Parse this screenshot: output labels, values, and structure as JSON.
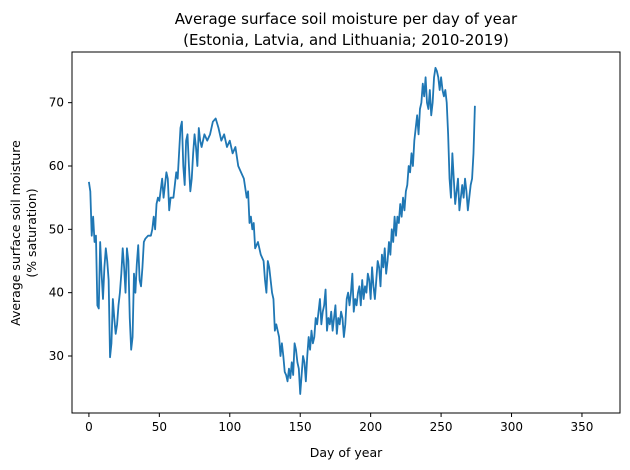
{
  "chart_data": {
    "type": "line",
    "title": "Average surface soil moisture per day of year",
    "subtitle": "(Estonia, Latvia, and Lithuania; 2010-2019)",
    "xlabel": "Day of year",
    "ylabel": "Average surface soil moisture",
    "ylabel2": "(% saturation)",
    "xlim": [
      -12,
      377
    ],
    "ylim": [
      21,
      78
    ],
    "xticks": [
      0,
      50,
      100,
      150,
      200,
      250,
      300,
      350
    ],
    "yticks": [
      30,
      40,
      50,
      60,
      70
    ],
    "grid": false,
    "series": [
      {
        "color": "#1f77b4",
        "points": [
          [
            0,
            57.5
          ],
          [
            1,
            56
          ],
          [
            2,
            49
          ],
          [
            3,
            52
          ],
          [
            4,
            48
          ],
          [
            5,
            49
          ],
          [
            6,
            38
          ],
          [
            7,
            37.5
          ],
          [
            8,
            48
          ],
          [
            9,
            43
          ],
          [
            10,
            39
          ],
          [
            11,
            44
          ],
          [
            12,
            47
          ],
          [
            13,
            45
          ],
          [
            14,
            42
          ],
          [
            15,
            29.8
          ],
          [
            16,
            32
          ],
          [
            17,
            39
          ],
          [
            18,
            36
          ],
          [
            19,
            33.5
          ],
          [
            20,
            35
          ],
          [
            21,
            38
          ],
          [
            22,
            40
          ],
          [
            23,
            43
          ],
          [
            24,
            47
          ],
          [
            25,
            44
          ],
          [
            26,
            40
          ],
          [
            27,
            47
          ],
          [
            28,
            45
          ],
          [
            29,
            36
          ],
          [
            30,
            31
          ],
          [
            31,
            33
          ],
          [
            32,
            43
          ],
          [
            33,
            40
          ],
          [
            34,
            44.5
          ],
          [
            35,
            47.5
          ],
          [
            36,
            42
          ],
          [
            37,
            41
          ],
          [
            38,
            44
          ],
          [
            39,
            48
          ],
          [
            40,
            48.5
          ],
          [
            42,
            49
          ],
          [
            44,
            49
          ],
          [
            45,
            50
          ],
          [
            46,
            52
          ],
          [
            47,
            50
          ],
          [
            48,
            54
          ],
          [
            49,
            55
          ],
          [
            50,
            54.5
          ],
          [
            52,
            58
          ],
          [
            53,
            55
          ],
          [
            54,
            57
          ],
          [
            55,
            59
          ],
          [
            56,
            58
          ],
          [
            57,
            53
          ],
          [
            58,
            55
          ],
          [
            60,
            55
          ],
          [
            61,
            57
          ],
          [
            62,
            59
          ],
          [
            63,
            58
          ],
          [
            64,
            62
          ],
          [
            65,
            66
          ],
          [
            66,
            67
          ],
          [
            67,
            60
          ],
          [
            68,
            57
          ],
          [
            69,
            64
          ],
          [
            70,
            65
          ],
          [
            71,
            60
          ],
          [
            72,
            56
          ],
          [
            73,
            58
          ],
          [
            74,
            62
          ],
          [
            75,
            65
          ],
          [
            76,
            63
          ],
          [
            77,
            60
          ],
          [
            78,
            66
          ],
          [
            79,
            64
          ],
          [
            80,
            63
          ],
          [
            82,
            65
          ],
          [
            84,
            64
          ],
          [
            86,
            65
          ],
          [
            88,
            67
          ],
          [
            90,
            67.5
          ],
          [
            92,
            66
          ],
          [
            94,
            64
          ],
          [
            96,
            65
          ],
          [
            98,
            63
          ],
          [
            100,
            64
          ],
          [
            102,
            62
          ],
          [
            104,
            63
          ],
          [
            106,
            60
          ],
          [
            108,
            59
          ],
          [
            110,
            58
          ],
          [
            112,
            55
          ],
          [
            113,
            56
          ],
          [
            114,
            51
          ],
          [
            115,
            52
          ],
          [
            116,
            50
          ],
          [
            117,
            51
          ],
          [
            118,
            47
          ],
          [
            120,
            48
          ],
          [
            122,
            46
          ],
          [
            124,
            45
          ],
          [
            125,
            42
          ],
          [
            126,
            40
          ],
          [
            127,
            45
          ],
          [
            128,
            44
          ],
          [
            130,
            40
          ],
          [
            131,
            39
          ],
          [
            132,
            34
          ],
          [
            133,
            35
          ],
          [
            134,
            34
          ],
          [
            135,
            33
          ],
          [
            136,
            30
          ],
          [
            137,
            32
          ],
          [
            138,
            30
          ],
          [
            139,
            27.5
          ],
          [
            140,
            27
          ],
          [
            141,
            26
          ],
          [
            142,
            28
          ],
          [
            143,
            26.5
          ],
          [
            144,
            29
          ],
          [
            145,
            27
          ],
          [
            146,
            32
          ],
          [
            147,
            31
          ],
          [
            148,
            29
          ],
          [
            149,
            28
          ],
          [
            150,
            24
          ],
          [
            151,
            27
          ],
          [
            152,
            30
          ],
          [
            153,
            29
          ],
          [
            154,
            26
          ],
          [
            155,
            30
          ],
          [
            156,
            33
          ],
          [
            157,
            31
          ],
          [
            158,
            34
          ],
          [
            159,
            32
          ],
          [
            160,
            33
          ],
          [
            161,
            36
          ],
          [
            162,
            35
          ],
          [
            163,
            37
          ],
          [
            164,
            39
          ],
          [
            165,
            35
          ],
          [
            166,
            37
          ],
          [
            167,
            38
          ],
          [
            168,
            40.5
          ],
          [
            169,
            34
          ],
          [
            170,
            36
          ],
          [
            171,
            35
          ],
          [
            172,
            37
          ],
          [
            173,
            34
          ],
          [
            174,
            36
          ],
          [
            175,
            38
          ],
          [
            176,
            33.5
          ],
          [
            177,
            36
          ],
          [
            178,
            35
          ],
          [
            179,
            37
          ],
          [
            180,
            36
          ],
          [
            181,
            33
          ],
          [
            182,
            35
          ],
          [
            183,
            39
          ],
          [
            184,
            40
          ],
          [
            185,
            38
          ],
          [
            186,
            40
          ],
          [
            187,
            43
          ],
          [
            188,
            37
          ],
          [
            189,
            39
          ],
          [
            190,
            38
          ],
          [
            191,
            40
          ],
          [
            192,
            41
          ],
          [
            193,
            38
          ],
          [
            194,
            42
          ],
          [
            195,
            39
          ],
          [
            196,
            41
          ],
          [
            197,
            40
          ],
          [
            198,
            43
          ],
          [
            199,
            42
          ],
          [
            200,
            39
          ],
          [
            201,
            44
          ],
          [
            202,
            41
          ],
          [
            203,
            39
          ],
          [
            204,
            42
          ],
          [
            205,
            45
          ],
          [
            206,
            44
          ],
          [
            207,
            41
          ],
          [
            208,
            46
          ],
          [
            209,
            44
          ],
          [
            210,
            47
          ],
          [
            211,
            43
          ],
          [
            212,
            45
          ],
          [
            213,
            48
          ],
          [
            214,
            46
          ],
          [
            215,
            50
          ],
          [
            216,
            48
          ],
          [
            217,
            52
          ],
          [
            218,
            49
          ],
          [
            219,
            52
          ],
          [
            220,
            51
          ],
          [
            221,
            54
          ],
          [
            222,
            52
          ],
          [
            223,
            55
          ],
          [
            224,
            53
          ],
          [
            225,
            56
          ],
          [
            226,
            57
          ],
          [
            227,
            60
          ],
          [
            228,
            59
          ],
          [
            229,
            62
          ],
          [
            230,
            60
          ],
          [
            231,
            64
          ],
          [
            232,
            66
          ],
          [
            233,
            68
          ],
          [
            234,
            65
          ],
          [
            235,
            69
          ],
          [
            236,
            70
          ],
          [
            237,
            73
          ],
          [
            238,
            71
          ],
          [
            239,
            74
          ],
          [
            240,
            70
          ],
          [
            241,
            69
          ],
          [
            242,
            72
          ],
          [
            243,
            68
          ],
          [
            244,
            70
          ],
          [
            245,
            74
          ],
          [
            246,
            75.5
          ],
          [
            247,
            75
          ],
          [
            248,
            74
          ],
          [
            249,
            72
          ],
          [
            250,
            74
          ],
          [
            251,
            72
          ],
          [
            252,
            71
          ],
          [
            253,
            72
          ],
          [
            254,
            70
          ],
          [
            255,
            65
          ],
          [
            256,
            58
          ],
          [
            257,
            55
          ],
          [
            258,
            62
          ],
          [
            259,
            58
          ],
          [
            260,
            54
          ],
          [
            261,
            56
          ],
          [
            262,
            58
          ],
          [
            263,
            53
          ],
          [
            264,
            55
          ],
          [
            265,
            57
          ],
          [
            266,
            55
          ],
          [
            267,
            58
          ],
          [
            268,
            56
          ],
          [
            269,
            53
          ],
          [
            270,
            55
          ],
          [
            271,
            57
          ],
          [
            272,
            58
          ],
          [
            273,
            62
          ],
          [
            274,
            69.5
          ]
        ]
      }
    ]
  }
}
